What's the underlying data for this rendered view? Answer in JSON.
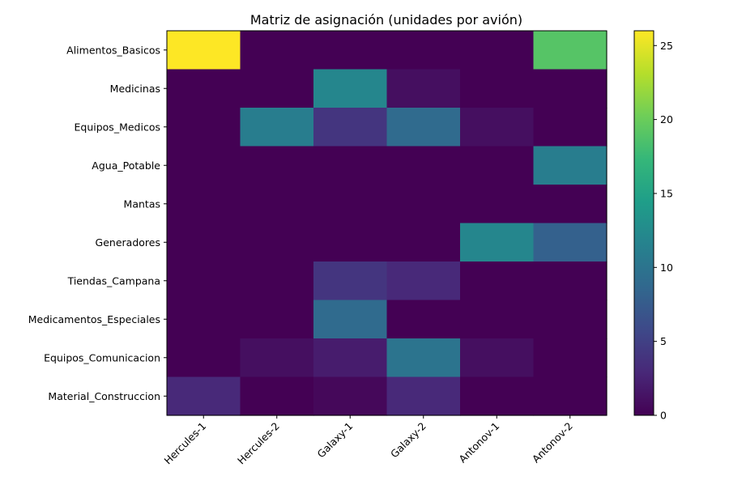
{
  "chart_data": {
    "type": "heatmap",
    "title": "Matriz de asignación (unidades por avión)",
    "xlabel": "",
    "ylabel": "",
    "x_categories": [
      "Hercules-1",
      "Hercules-2",
      "Galaxy-1",
      "Galaxy-2",
      "Antonov-1",
      "Antonov-2"
    ],
    "y_categories": [
      "Alimentos_Basicos",
      "Medicinas",
      "Equipos_Medicos",
      "Agua_Potable",
      "Mantas",
      "Generadores",
      "Tiendas_Campana",
      "Medicamentos_Especiales",
      "Equipos_Comunicacion",
      "Material_Construccion"
    ],
    "values": [
      [
        26,
        0,
        0,
        0,
        0,
        19
      ],
      [
        0,
        0,
        12,
        1,
        0,
        0
      ],
      [
        0,
        11,
        4,
        9,
        1,
        0
      ],
      [
        0,
        0,
        0,
        0,
        0,
        11
      ],
      [
        0,
        0,
        0,
        0,
        0,
        0
      ],
      [
        0,
        0,
        0,
        0,
        12,
        8
      ],
      [
        0,
        0,
        4,
        3,
        0,
        0
      ],
      [
        0,
        0,
        9,
        0,
        0,
        0
      ],
      [
        0,
        1,
        2,
        10,
        1,
        0
      ],
      [
        3,
        0,
        0.5,
        3,
        0,
        0
      ]
    ],
    "colormap": "viridis",
    "vmin": 0,
    "vmax": 26,
    "colorbar_ticks": [
      0,
      5,
      10,
      15,
      20,
      25
    ],
    "colorbar": true,
    "grid": false
  }
}
